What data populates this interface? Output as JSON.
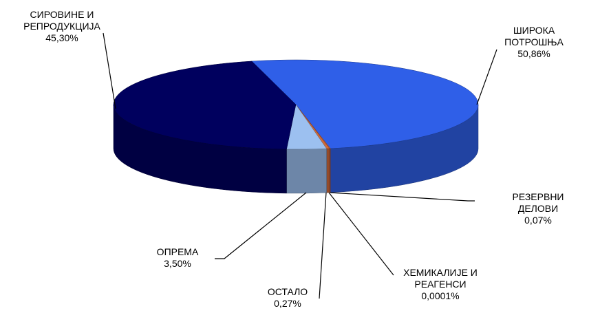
{
  "chart_data": {
    "type": "pie3d",
    "categories": [
      "ШИРОКА\nПОТРОШЊА",
      "РЕЗЕРВНИ ДЕЛОВИ",
      "ХЕМИКАЛИЈЕ И\nРЕАГЕНСИ",
      "ОСТАЛО",
      "ОПРЕМА",
      "СИРОВИНЕ И\nРЕПРОДУКЦИЈА"
    ],
    "values": [
      50.86,
      0.07,
      0.0001,
      0.27,
      3.5,
      45.3
    ],
    "value_labels": [
      "50,86%",
      "0,07%",
      "0,0001%",
      "0,27%",
      "3,50%",
      "45,30%"
    ],
    "colors": [
      "#2f5fe8",
      "#e07040",
      "#c04030",
      "#d06a3a",
      "#9cc0f0",
      "#00005e"
    ]
  }
}
